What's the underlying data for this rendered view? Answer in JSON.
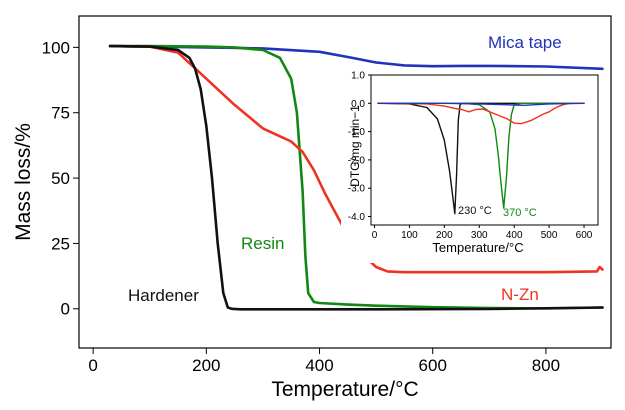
{
  "chart_data": [
    {
      "type": "line",
      "title": "",
      "xlabel": "Temperature/°C",
      "ylabel": "Mass loss/%",
      "xlim": [
        -25,
        915
      ],
      "ylim": [
        -15,
        112
      ],
      "xticks": [
        0,
        200,
        400,
        600,
        800
      ],
      "yticks": [
        0,
        25,
        50,
        75,
        100
      ],
      "grid": false,
      "series": [
        {
          "name": "Mica tape",
          "color": "#2233bb",
          "x": [
            30,
            100,
            200,
            300,
            400,
            450,
            500,
            550,
            600,
            650,
            700,
            800,
            900
          ],
          "y": [
            100.5,
            100.3,
            100,
            99.6,
            98.3,
            96.3,
            94.2,
            93.1,
            92.8,
            92.9,
            92.9,
            92.7,
            91.8
          ]
        },
        {
          "name": "Resin",
          "color": "#118811",
          "x": [
            30,
            100,
            200,
            250,
            300,
            330,
            350,
            360,
            370,
            375,
            380,
            390,
            400,
            450,
            500,
            600,
            700,
            800,
            900
          ],
          "y": [
            100.5,
            100.5,
            100.3,
            100,
            99,
            96,
            88,
            75,
            45,
            20,
            6,
            2.6,
            2.2,
            1.6,
            1.2,
            0.6,
            0.3,
            0.1,
            0.5
          ]
        },
        {
          "name": "N-Zn",
          "color": "#ee3322",
          "x": [
            30,
            100,
            150,
            200,
            250,
            300,
            330,
            350,
            370,
            390,
            410,
            430,
            450,
            480,
            500,
            520,
            550,
            600,
            700,
            800,
            890,
            895,
            900
          ],
          "y": [
            100.5,
            100.3,
            98,
            88,
            78,
            69,
            66,
            64,
            60,
            53,
            44,
            36,
            28,
            20,
            16,
            14.3,
            14,
            14,
            14,
            14,
            14.3,
            16,
            15
          ]
        },
        {
          "name": "Hardener",
          "color": "#111111",
          "x": [
            30,
            100,
            150,
            170,
            180,
            190,
            200,
            210,
            220,
            230,
            238,
            245,
            260,
            300,
            500,
            700,
            900
          ],
          "y": [
            100.5,
            100.3,
            99,
            96,
            92,
            84,
            70,
            50,
            25,
            6,
            0.5,
            0,
            -0.2,
            -0.2,
            -0.2,
            -0.1,
            0.5
          ]
        }
      ],
      "annotations": [
        "Mica tape",
        "Resin",
        "N-Zn",
        "Hardener"
      ]
    },
    {
      "type": "line",
      "title": "",
      "xlabel": "Temperature/°C",
      "ylabel": "DTG/mg min−1",
      "xlim": [
        -10,
        640
      ],
      "ylim": [
        -4.3,
        1.0
      ],
      "xticks": [
        0,
        100,
        200,
        300,
        400,
        500,
        600
      ],
      "yticks": [
        1.0,
        0,
        -1.0,
        -2.0,
        -3.0,
        -4.0
      ],
      "ytick_labels": [
        "1.0",
        "0.0",
        "-1.0",
        "-2.0",
        "-3.0",
        "-4.0"
      ],
      "grid": false,
      "series": [
        {
          "color": "#111111",
          "x": [
            10,
            100,
            150,
            180,
            200,
            215,
            225,
            230,
            235,
            240,
            245,
            250,
            300,
            600
          ],
          "y": [
            0,
            -0.02,
            -0.15,
            -0.55,
            -1.3,
            -2.4,
            -3.4,
            -3.9,
            -2.5,
            -0.6,
            -0.05,
            0,
            0,
            0
          ]
        },
        {
          "color": "#118811",
          "x": [
            10,
            250,
            300,
            330,
            345,
            355,
            362,
            370,
            378,
            385,
            392,
            400,
            420,
            600
          ],
          "y": [
            0,
            0,
            -0.05,
            -0.3,
            -0.9,
            -1.9,
            -2.8,
            -3.7,
            -2.6,
            -1.2,
            -0.4,
            -0.05,
            0,
            0
          ]
        },
        {
          "color": "#ee3322",
          "x": [
            10,
            150,
            200,
            230,
            250,
            270,
            290,
            310,
            330,
            350,
            380,
            400,
            420,
            450,
            480,
            500,
            520,
            540,
            560,
            600
          ],
          "y": [
            0,
            -0.02,
            -0.1,
            -0.18,
            -0.22,
            -0.3,
            -0.22,
            -0.2,
            -0.3,
            -0.4,
            -0.55,
            -0.7,
            -0.72,
            -0.6,
            -0.4,
            -0.3,
            -0.15,
            -0.05,
            0,
            0
          ]
        },
        {
          "color": "#2233bb",
          "x": [
            10,
            200,
            300,
            350,
            400,
            430,
            460,
            500,
            600
          ],
          "y": [
            0,
            0,
            -0.02,
            -0.04,
            -0.06,
            -0.07,
            -0.05,
            -0.02,
            0
          ]
        }
      ],
      "annotations": [
        "230 °C",
        "370 °C"
      ],
      "annotation_colors": [
        "#111111",
        "#118811"
      ]
    }
  ]
}
